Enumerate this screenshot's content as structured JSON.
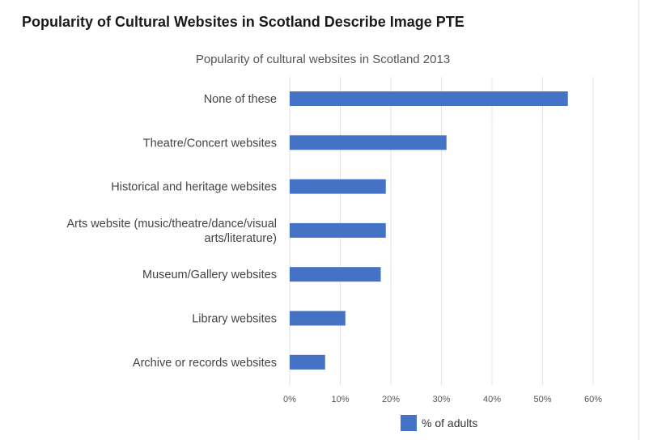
{
  "page": {
    "heading": "Popularity of Cultural Websites in Scotland Describe Image PTE"
  },
  "colors": {
    "bar": "#4472c4",
    "gridline": "#e2e2e2"
  },
  "chart_data": {
    "type": "bar",
    "orientation": "horizontal",
    "title": "Popularity of cultural websites in Scotland 2013",
    "xlabel": "",
    "ylabel": "",
    "categories": [
      [
        "None of these"
      ],
      [
        "Theatre/Concert websites"
      ],
      [
        "Historical and heritage websites"
      ],
      [
        "Arts website (music/theatre/dance/visual",
        "arts/literature)"
      ],
      [
        "Museum/Gallery websites"
      ],
      [
        "Library websites"
      ],
      [
        "Archive or records websites"
      ]
    ],
    "series": [
      {
        "name": "% of adults",
        "color": "#4472c4",
        "values": [
          55,
          31,
          19,
          19,
          18,
          11,
          7
        ]
      }
    ],
    "xlim": [
      0,
      60
    ],
    "x_ticks": [
      0,
      10,
      20,
      30,
      40,
      50,
      60
    ],
    "x_tick_labels": [
      "0%",
      "10%",
      "20%",
      "30%",
      "40%",
      "50%",
      "60%"
    ],
    "grid": true,
    "legend": {
      "position": "bottom",
      "label": "% of adults"
    }
  }
}
